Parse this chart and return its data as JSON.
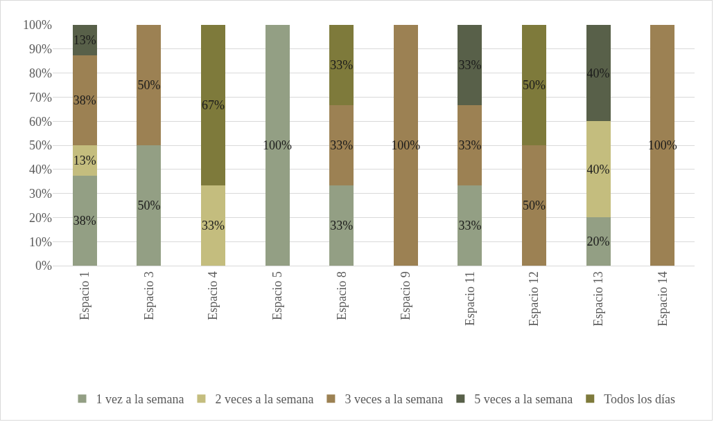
{
  "chart_data": {
    "type": "bar",
    "stacked": true,
    "categories": [
      "Espacio 1",
      "Espacio 3",
      "Espacio 4",
      "Espacio 5",
      "Espacio 8",
      "Espacio 9",
      "Espacio 11",
      "Espacio 12",
      "Espacio 13",
      "Espacio 14"
    ],
    "series": [
      {
        "name": "1 vez a la semana",
        "color": "#939f84",
        "values": [
          37.5,
          50,
          null,
          100,
          33.3,
          null,
          33.3,
          null,
          20,
          null
        ],
        "value_labels": [
          "38%",
          "50%",
          null,
          "100%",
          "33%",
          null,
          "33%",
          null,
          "20%",
          null
        ]
      },
      {
        "name": "2 veces a la semana",
        "color": "#c4bd7e",
        "values": [
          12.5,
          null,
          33.3,
          null,
          null,
          null,
          null,
          null,
          40,
          null
        ],
        "value_labels": [
          "13%",
          null,
          "33%",
          null,
          null,
          null,
          null,
          null,
          "40%",
          null
        ]
      },
      {
        "name": "3 veces a la semana",
        "color": "#9c8153",
        "values": [
          37.5,
          50,
          null,
          null,
          33.3,
          100,
          33.3,
          50,
          null,
          100
        ],
        "value_labels": [
          "38%",
          "50%",
          null,
          null,
          "33%",
          "100%",
          "33%",
          "50%",
          null,
          "100%"
        ]
      },
      {
        "name": "5 veces a la semana",
        "color": "#586049",
        "values": [
          12.5,
          null,
          null,
          null,
          null,
          null,
          33.4,
          null,
          40,
          null
        ],
        "value_labels": [
          "13%",
          null,
          null,
          null,
          null,
          null,
          "33%",
          null,
          "40%",
          null
        ]
      },
      {
        "name": "Todos los días",
        "color": "#7e7a3b",
        "values": [
          null,
          null,
          66.7,
          null,
          33.4,
          null,
          null,
          50,
          null,
          null
        ],
        "value_labels": [
          null,
          null,
          "67%",
          null,
          "33%",
          null,
          null,
          "50%",
          null,
          null
        ]
      }
    ],
    "ylim": [
      0,
      100
    ],
    "yticks": [
      {
        "value": 0,
        "label": "0%"
      },
      {
        "value": 10,
        "label": "10%"
      },
      {
        "value": 20,
        "label": "20%"
      },
      {
        "value": 30,
        "label": "30%"
      },
      {
        "value": 40,
        "label": "40%"
      },
      {
        "value": 50,
        "label": "50%"
      },
      {
        "value": 60,
        "label": "60%"
      },
      {
        "value": 70,
        "label": "70%"
      },
      {
        "value": 80,
        "label": "80%"
      },
      {
        "value": 90,
        "label": "90%"
      },
      {
        "value": 100,
        "label": "100%"
      }
    ],
    "grid": "y",
    "legend": "bottom"
  }
}
